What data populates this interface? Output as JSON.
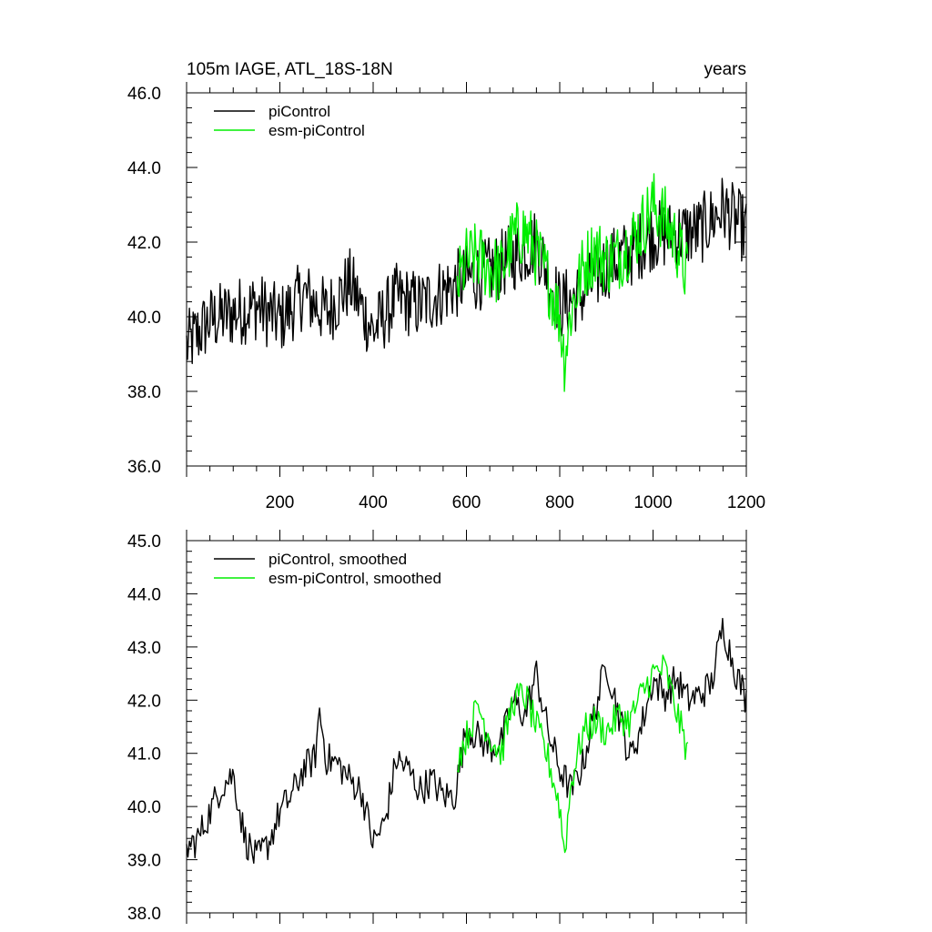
{
  "figure": {
    "width": 1024,
    "height": 1024
  },
  "chart_data": [
    {
      "type": "line",
      "title": "105m IAGE, ATL_18S-18N",
      "title_right": "years",
      "xlabel": "",
      "ylabel": "",
      "xlim": [
        0,
        1200
      ],
      "ylim": [
        36,
        46
      ],
      "xticks": [
        200,
        400,
        600,
        800,
        1000,
        1200
      ],
      "yticks": [
        36,
        38,
        40,
        42,
        44,
        46
      ],
      "ytick_labels": [
        "36.0",
        "38.0",
        "40.0",
        "42.0",
        "44.0",
        "46.0"
      ],
      "show_x_tick_labels": true,
      "legend": [
        "piControl",
        "esm-piControl"
      ],
      "legend_position": "top-left",
      "series": [
        {
          "name": "piControl",
          "color": "#000000",
          "x": [
            0,
            50,
            100,
            150,
            200,
            250,
            300,
            350,
            400,
            450,
            500,
            550,
            600,
            650,
            700,
            750,
            800,
            850,
            900,
            950,
            1000,
            1050,
            1100,
            1150,
            1200
          ],
          "values": [
            39.2,
            39.9,
            40.1,
            40.3,
            39.9,
            40.6,
            40.1,
            40.9,
            39.6,
            40.5,
            40.3,
            40.7,
            41.0,
            41.2,
            41.6,
            42.0,
            40.3,
            40.6,
            41.4,
            41.7,
            42.2,
            42.2,
            42.3,
            42.9,
            42.3
          ]
        },
        {
          "name": "esm-piControl",
          "color": "#00ee00",
          "x": [
            580,
            600,
            625,
            650,
            675,
            700,
            725,
            750,
            775,
            800,
            810,
            825,
            850,
            875,
            900,
            925,
            950,
            975,
            1000,
            1025,
            1050,
            1075
          ],
          "values": [
            40.8,
            41.5,
            41.6,
            41.3,
            41.2,
            42.1,
            42.3,
            41.7,
            41.0,
            40.0,
            38.9,
            40.2,
            41.3,
            41.8,
            41.5,
            41.6,
            42.0,
            42.4,
            43.0,
            42.6,
            42.0,
            41.0
          ]
        }
      ]
    },
    {
      "type": "line",
      "title": "",
      "xlabel": "",
      "ylabel": "",
      "xlim": [
        0,
        1200
      ],
      "ylim": [
        38,
        45
      ],
      "xticks": [
        200,
        400,
        600,
        800,
        1000,
        1200
      ],
      "yticks": [
        38,
        39,
        40,
        41,
        42,
        43,
        44,
        45
      ],
      "ytick_labels": [
        "38.0",
        "39.0",
        "40.0",
        "41.0",
        "42.0",
        "43.0",
        "44.0",
        "45.0"
      ],
      "show_x_tick_labels": false,
      "legend": [
        "piControl, smoothed",
        "esm-piControl, smoothed"
      ],
      "legend_position": "top-left",
      "series": [
        {
          "name": "piControl, smoothed",
          "color": "#000000",
          "x": [
            0,
            25,
            50,
            75,
            100,
            125,
            150,
            175,
            200,
            225,
            250,
            275,
            285,
            300,
            325,
            350,
            375,
            400,
            425,
            450,
            475,
            500,
            525,
            550,
            575,
            600,
            625,
            650,
            675,
            700,
            725,
            750,
            775,
            800,
            825,
            850,
            875,
            900,
            925,
            950,
            975,
            1000,
            1025,
            1050,
            1075,
            1100,
            1125,
            1150,
            1175,
            1200
          ],
          "values": [
            39.2,
            39.4,
            39.9,
            40.4,
            40.6,
            39.4,
            39.0,
            39.3,
            39.9,
            40.2,
            40.7,
            40.9,
            41.8,
            40.9,
            40.8,
            40.5,
            40.3,
            39.3,
            39.7,
            40.9,
            40.7,
            40.3,
            40.5,
            40.2,
            40.2,
            41.5,
            41.3,
            41.1,
            41.2,
            42.0,
            41.7,
            42.5,
            41.4,
            40.7,
            40.3,
            40.8,
            41.8,
            42.7,
            41.8,
            40.9,
            41.5,
            42.4,
            42.1,
            42.4,
            42.0,
            42.1,
            42.3,
            43.4,
            42.6,
            42.0
          ]
        },
        {
          "name": "esm-piControl, smoothed",
          "color": "#00ee00",
          "x": [
            580,
            600,
            625,
            650,
            675,
            700,
            725,
            750,
            775,
            800,
            810,
            825,
            850,
            875,
            900,
            925,
            950,
            975,
            1000,
            1025,
            1050,
            1075
          ],
          "values": [
            40.9,
            41.3,
            41.9,
            41.3,
            41.0,
            42.0,
            42.1,
            41.5,
            40.9,
            40.0,
            39.1,
            40.5,
            41.4,
            41.6,
            41.4,
            41.7,
            41.6,
            42.1,
            42.5,
            42.6,
            41.8,
            41.0
          ]
        }
      ]
    }
  ]
}
